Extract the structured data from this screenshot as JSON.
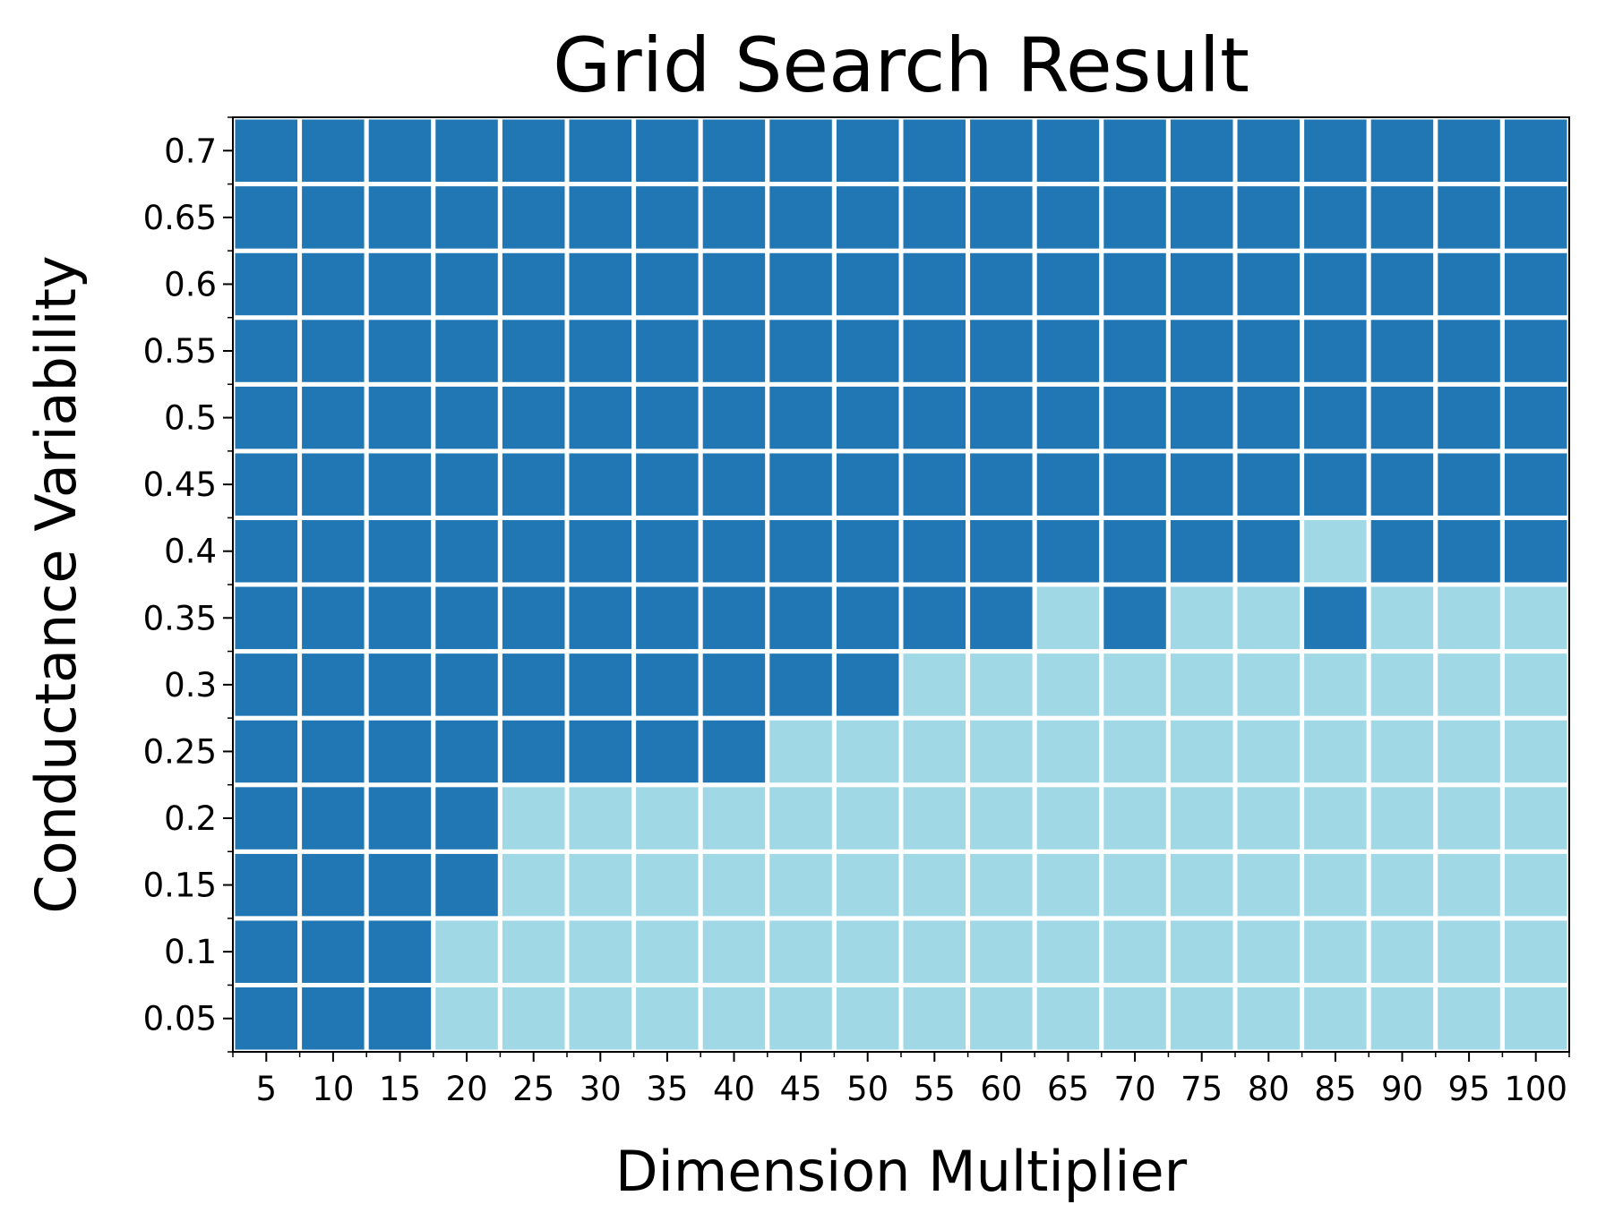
{
  "chart_data": {
    "type": "heatmap",
    "title": "Grid Search Result",
    "xlabel": "Dimension Multiplier",
    "ylabel": "Conductance Variability",
    "x": [
      "5",
      "10",
      "15",
      "20",
      "25",
      "30",
      "35",
      "40",
      "45",
      "50",
      "55",
      "60",
      "65",
      "70",
      "75",
      "80",
      "85",
      "90",
      "95",
      "100"
    ],
    "y": [
      "0.05",
      "0.1",
      "0.15",
      "0.2",
      "0.25",
      "0.3",
      "0.35",
      "0.4",
      "0.45",
      "0.5",
      "0.55",
      "0.6",
      "0.65",
      "0.7"
    ],
    "values": [
      [
        1,
        1,
        1,
        0,
        0,
        0,
        0,
        0,
        0,
        0,
        0,
        0,
        0,
        0,
        0,
        0,
        0,
        0,
        0,
        0
      ],
      [
        1,
        1,
        1,
        0,
        0,
        0,
        0,
        0,
        0,
        0,
        0,
        0,
        0,
        0,
        0,
        0,
        0,
        0,
        0,
        0
      ],
      [
        1,
        1,
        1,
        1,
        0,
        0,
        0,
        0,
        0,
        0,
        0,
        0,
        0,
        0,
        0,
        0,
        0,
        0,
        0,
        0
      ],
      [
        1,
        1,
        1,
        1,
        0,
        0,
        0,
        0,
        0,
        0,
        0,
        0,
        0,
        0,
        0,
        0,
        0,
        0,
        0,
        0
      ],
      [
        1,
        1,
        1,
        1,
        1,
        1,
        1,
        1,
        0,
        0,
        0,
        0,
        0,
        0,
        0,
        0,
        0,
        0,
        0,
        0
      ],
      [
        1,
        1,
        1,
        1,
        1,
        1,
        1,
        1,
        1,
        1,
        0,
        0,
        0,
        0,
        0,
        0,
        0,
        0,
        0,
        0
      ],
      [
        1,
        1,
        1,
        1,
        1,
        1,
        1,
        1,
        1,
        1,
        1,
        1,
        0,
        1,
        0,
        0,
        1,
        0,
        0,
        0
      ],
      [
        1,
        1,
        1,
        1,
        1,
        1,
        1,
        1,
        1,
        1,
        1,
        1,
        1,
        1,
        1,
        1,
        0,
        1,
        1,
        1
      ],
      [
        1,
        1,
        1,
        1,
        1,
        1,
        1,
        1,
        1,
        1,
        1,
        1,
        1,
        1,
        1,
        1,
        1,
        1,
        1,
        1
      ],
      [
        1,
        1,
        1,
        1,
        1,
        1,
        1,
        1,
        1,
        1,
        1,
        1,
        1,
        1,
        1,
        1,
        1,
        1,
        1,
        1
      ],
      [
        1,
        1,
        1,
        1,
        1,
        1,
        1,
        1,
        1,
        1,
        1,
        1,
        1,
        1,
        1,
        1,
        1,
        1,
        1,
        1
      ],
      [
        1,
        1,
        1,
        1,
        1,
        1,
        1,
        1,
        1,
        1,
        1,
        1,
        1,
        1,
        1,
        1,
        1,
        1,
        1,
        1
      ],
      [
        1,
        1,
        1,
        1,
        1,
        1,
        1,
        1,
        1,
        1,
        1,
        1,
        1,
        1,
        1,
        1,
        1,
        1,
        1,
        1
      ],
      [
        1,
        1,
        1,
        1,
        1,
        1,
        1,
        1,
        1,
        1,
        1,
        1,
        1,
        1,
        1,
        1,
        1,
        1,
        1,
        1
      ]
    ],
    "colors": {
      "1": "#2077b4",
      "0": "#a0d9e5"
    },
    "cell_border_color": "#ffffff",
    "grid": false,
    "legend": "none"
  }
}
